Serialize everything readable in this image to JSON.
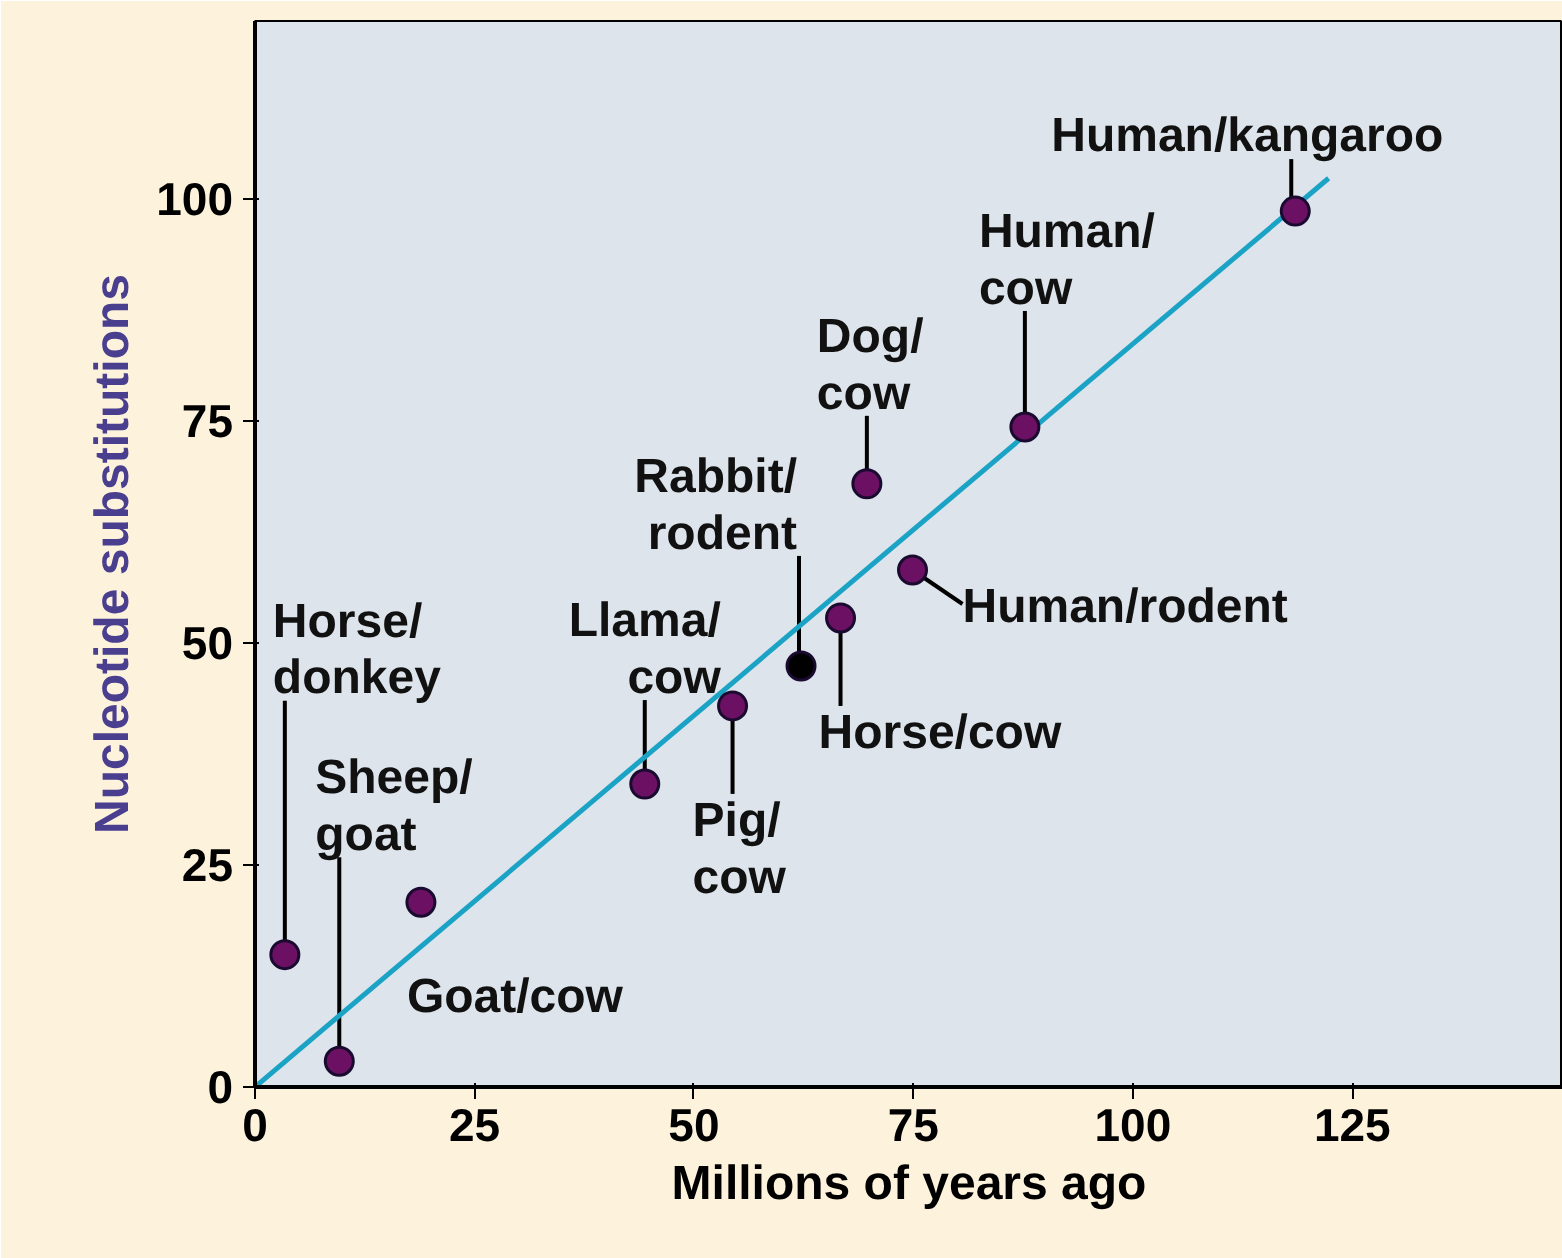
{
  "chart_data": {
    "type": "scatter",
    "xlabel": "Millions of years ago",
    "ylabel": "Nucleotide substitutions",
    "xlim": [
      0,
      149
    ],
    "ylim": [
      0,
      120
    ],
    "xticks": [
      0,
      25,
      50,
      75,
      100,
      125
    ],
    "yticks": [
      0,
      25,
      50,
      75,
      100
    ],
    "grid": false,
    "marker": "circle",
    "series": [
      {
        "x": [
          3.4,
          9.6,
          18.9,
          44.4,
          54.4,
          62.2,
          66.7,
          69.7,
          74.9,
          87.7,
          118.5
        ],
        "values": [
          14.9,
          2.9,
          20.8,
          34.1,
          42.9,
          47.4,
          52.8,
          67.9,
          58.2,
          74.3,
          98.6
        ],
        "colors": [
          "#6b1063",
          "#6b1063",
          "#6b1063",
          "#6b1063",
          "#6b1063",
          "#000000",
          "#6b1063",
          "#6b1063",
          "#6b1063",
          "#6b1063",
          "#6b1063"
        ]
      },
      {
        "type": "line",
        "x": [
          0,
          122.3
        ],
        "values": [
          0,
          102.3
        ],
        "color": "#1ba3c6",
        "marker": "none"
      }
    ],
    "annotations": [
      {
        "text": "Horse/\ndonkey",
        "x": 3.4,
        "y": 14.9
      },
      {
        "text": "Sheep/\ngoat",
        "x": 9.6,
        "y": 2.9
      },
      {
        "text": "Goat/cow",
        "x": 18.9,
        "y": 20.8
      },
      {
        "text": "Llama/\ncow",
        "x": 44.4,
        "y": 34.1
      },
      {
        "text": "Pig/\ncow",
        "x": 54.4,
        "y": 42.9
      },
      {
        "text": "Rabbit/\nrodent",
        "x": 62.2,
        "y": 47.4
      },
      {
        "text": "Horse/cow",
        "x": 66.7,
        "y": 52.8
      },
      {
        "text": "Dog/\ncow",
        "x": 69.7,
        "y": 67.9
      },
      {
        "text": "Human/rodent",
        "x": 74.9,
        "y": 58.2
      },
      {
        "text": "Human/\ncow",
        "x": 87.7,
        "y": 74.3
      },
      {
        "text": "Human/kangaroo",
        "x": 118.5,
        "y": 98.6
      }
    ]
  }
}
